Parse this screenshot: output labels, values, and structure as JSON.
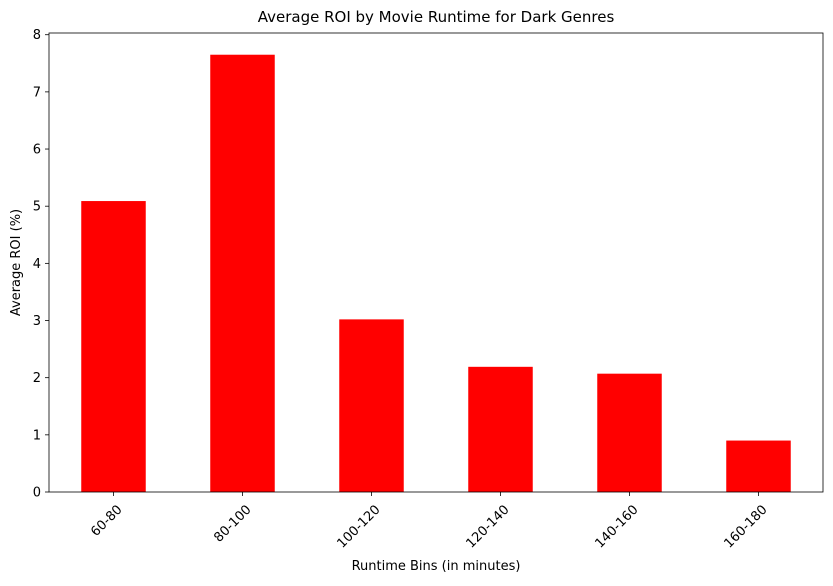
{
  "chart_data": {
    "type": "bar",
    "title": "Average ROI by Movie Runtime for Dark Genres",
    "xlabel": "Runtime Bins (in minutes)",
    "ylabel": "Average ROI (%)",
    "categories": [
      "60-80",
      "80-100",
      "100-120",
      "120-140",
      "140-160",
      "160-180"
    ],
    "values": [
      5.09,
      7.65,
      3.02,
      2.19,
      2.07,
      0.9
    ],
    "ylim": [
      0,
      8.03
    ],
    "yticks": [
      "0",
      "1",
      "2",
      "3",
      "4",
      "5",
      "6",
      "7",
      "8"
    ],
    "ytick_values": [
      0,
      1,
      2,
      3,
      4,
      5,
      6,
      7,
      8
    ],
    "bar_color": "#ff0000",
    "grid": false,
    "legend": "none",
    "xtick_rotation_deg": 45
  }
}
